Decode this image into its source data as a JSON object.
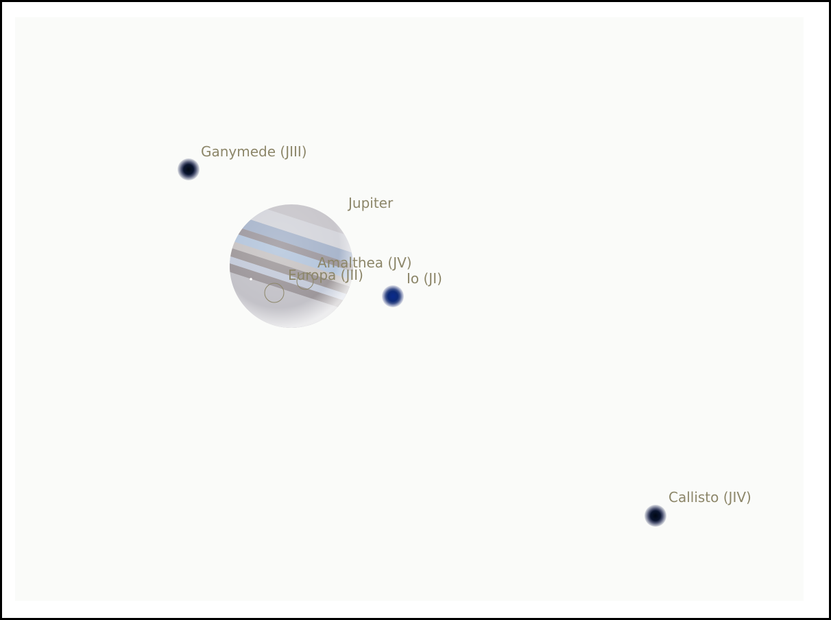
{
  "planet": {
    "label": "Jupiter"
  },
  "moons": [
    {
      "label": "Ganymede (JIII)"
    },
    {
      "label": "Amalthea (JV)"
    },
    {
      "label": "Europa (JII)"
    },
    {
      "label": "Io (JI)"
    },
    {
      "label": "Callisto (JIV)"
    }
  ]
}
